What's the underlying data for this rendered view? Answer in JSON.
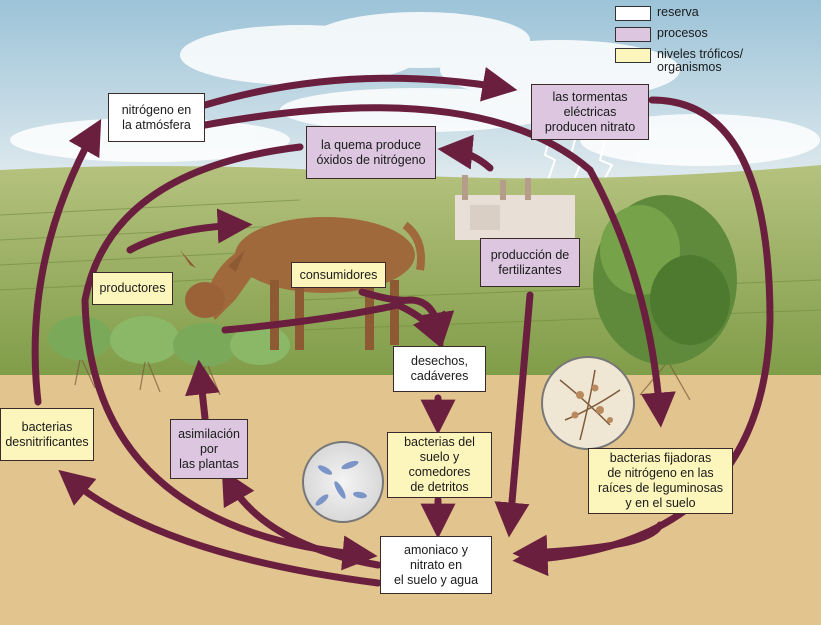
{
  "legend": {
    "reserva": "reserva",
    "procesos": "procesos",
    "niveles": "niveles tróficos/\norganismos"
  },
  "nodes": {
    "nitrogeno_atmosfera": "nitrógeno en\nla atmósfera",
    "tormentas": "las tormentas\neléctricas\nproducen nitrato",
    "quema": "la quema produce\nóxidos de nitrógeno",
    "fertilizantes": "producción de\nfertilizantes",
    "productores": "productores",
    "consumidores": "consumidores",
    "desechos": "desechos,\ncadáveres",
    "asimilacion": "asimilación\npor\nlas plantas",
    "bacterias_suelo": "bacterias del\nsuelo y\ncomedores\nde detritos",
    "bacterias_desnitrificantes": "bacterias\ndesnitrificantes",
    "bacterias_fijadoras": "bacterias fijadoras\nde nitrógeno en las\nraíces de leguminosas\ny en el suelo",
    "amoniaco": "amoniaco y\nnitrato en\nel suelo y agua"
  },
  "colors": {
    "reserva": "#ffffff",
    "procesos": "#dcc6e0",
    "niveles": "#fdf6bc",
    "arrow": "#6b1f3e",
    "soil": "#e2c48e",
    "sky": "#cfe2ea",
    "grass": "#8fae5a"
  },
  "icons": [
    "deer-illustration",
    "cabbage-plants",
    "factory-illustration",
    "bush-illustration",
    "lightning-icon",
    "bacteria-microscope-view",
    "root-nodule-microscope-view"
  ]
}
